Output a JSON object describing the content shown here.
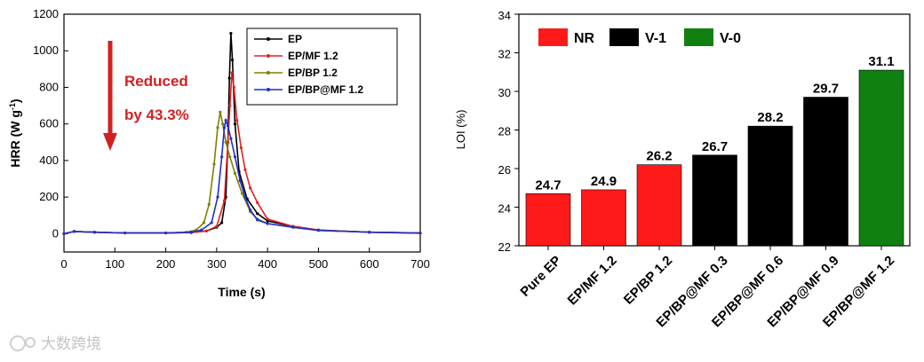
{
  "chart_data": [
    {
      "type": "line",
      "xlabel": "Time (s)",
      "ylabel": "HRR (W g",
      "ylabel_sup": "-1",
      "ylabel_close": ")",
      "xlim": [
        0,
        700
      ],
      "ylim": [
        -100,
        1200
      ],
      "xticks": [
        "0",
        "100",
        "200",
        "300",
        "400",
        "500",
        "600",
        "700"
      ],
      "yticks": [
        "0",
        "200",
        "400",
        "600",
        "800",
        "1000",
        "1200"
      ],
      "legend_position": "top-right",
      "annotation": {
        "line1": "Reduced",
        "line2": "by 43.3%",
        "color": "#d22020"
      },
      "series": [
        {
          "name": "EP",
          "color": "#000000",
          "points": [
            [
              0,
              0
            ],
            [
              20,
              12
            ],
            [
              60,
              8
            ],
            [
              120,
              4
            ],
            [
              200,
              4
            ],
            [
              250,
              6
            ],
            [
              280,
              15
            ],
            [
              300,
              35
            ],
            [
              310,
              60
            ],
            [
              318,
              200
            ],
            [
              322,
              500
            ],
            [
              325,
              850
            ],
            [
              328,
              1095
            ],
            [
              331,
              950
            ],
            [
              336,
              600
            ],
            [
              344,
              340
            ],
            [
              360,
              190
            ],
            [
              380,
              110
            ],
            [
              400,
              70
            ],
            [
              450,
              40
            ],
            [
              500,
              20
            ],
            [
              600,
              8
            ],
            [
              700,
              4
            ]
          ]
        },
        {
          "name": "EP/MF 1.2",
          "color": "#e02020",
          "points": [
            [
              0,
              0
            ],
            [
              20,
              12
            ],
            [
              60,
              8
            ],
            [
              120,
              4
            ],
            [
              200,
              4
            ],
            [
              250,
              6
            ],
            [
              280,
              15
            ],
            [
              300,
              40
            ],
            [
              315,
              180
            ],
            [
              322,
              500
            ],
            [
              326,
              700
            ],
            [
              330,
              880
            ],
            [
              334,
              800
            ],
            [
              340,
              620
            ],
            [
              348,
              470
            ],
            [
              356,
              350
            ],
            [
              366,
              250
            ],
            [
              380,
              170
            ],
            [
              400,
              80
            ],
            [
              450,
              40
            ],
            [
              500,
              20
            ],
            [
              600,
              8
            ],
            [
              700,
              4
            ]
          ]
        },
        {
          "name": "EP/BP 1.2",
          "color": "#808000",
          "points": [
            [
              0,
              0
            ],
            [
              20,
              12
            ],
            [
              60,
              8
            ],
            [
              120,
              4
            ],
            [
              200,
              4
            ],
            [
              240,
              8
            ],
            [
              260,
              20
            ],
            [
              275,
              60
            ],
            [
              285,
              160
            ],
            [
              295,
              380
            ],
            [
              302,
              580
            ],
            [
              307,
              665
            ],
            [
              312,
              600
            ],
            [
              318,
              500
            ],
            [
              326,
              420
            ],
            [
              336,
              330
            ],
            [
              350,
              220
            ],
            [
              366,
              120
            ],
            [
              380,
              80
            ],
            [
              400,
              55
            ],
            [
              450,
              35
            ],
            [
              500,
              18
            ],
            [
              600,
              8
            ],
            [
              700,
              3
            ]
          ]
        },
        {
          "name": "EP/BP@MF 1.2",
          "color": "#1f2fd0",
          "points": [
            [
              0,
              0
            ],
            [
              20,
              12
            ],
            [
              60,
              8
            ],
            [
              120,
              4
            ],
            [
              200,
              4
            ],
            [
              250,
              8
            ],
            [
              270,
              20
            ],
            [
              290,
              60
            ],
            [
              302,
              200
            ],
            [
              310,
              420
            ],
            [
              315,
              580
            ],
            [
              318,
              620
            ],
            [
              322,
              590
            ],
            [
              328,
              520
            ],
            [
              336,
              420
            ],
            [
              346,
              290
            ],
            [
              356,
              200
            ],
            [
              366,
              130
            ],
            [
              380,
              75
            ],
            [
              400,
              55
            ],
            [
              450,
              35
            ],
            [
              500,
              18
            ],
            [
              600,
              8
            ],
            [
              700,
              3
            ]
          ]
        }
      ]
    },
    {
      "type": "bar",
      "ylabel": "LOI (%)",
      "ylim": [
        22,
        34
      ],
      "yticks": [
        "22",
        "24",
        "26",
        "28",
        "30",
        "32",
        "34"
      ],
      "categories": [
        "Pure EP",
        "EP/MF 1.2",
        "EP/BP 1.2",
        "EP/BP@MF 0.3",
        "EP/BP@MF 0.6",
        "EP/BP@MF 0.9",
        "EP/BP@MF 1.2"
      ],
      "values": [
        24.7,
        24.9,
        26.2,
        26.7,
        28.2,
        29.7,
        31.1
      ],
      "value_labels": [
        "24.7",
        "24.9",
        "26.2",
        "26.7",
        "28.2",
        "29.7",
        "31.1"
      ],
      "ratings": [
        "NR",
        "NR",
        "NR",
        "V-1",
        "V-1",
        "V-1",
        "V-0"
      ],
      "legend_position": "top-left",
      "legend": [
        {
          "label": "NR",
          "color": "#ff1a1a"
        },
        {
          "label": "V-1",
          "color": "#000000"
        },
        {
          "label": "V-0",
          "color": "#108010"
        }
      ]
    }
  ],
  "watermark": "大数跨境"
}
